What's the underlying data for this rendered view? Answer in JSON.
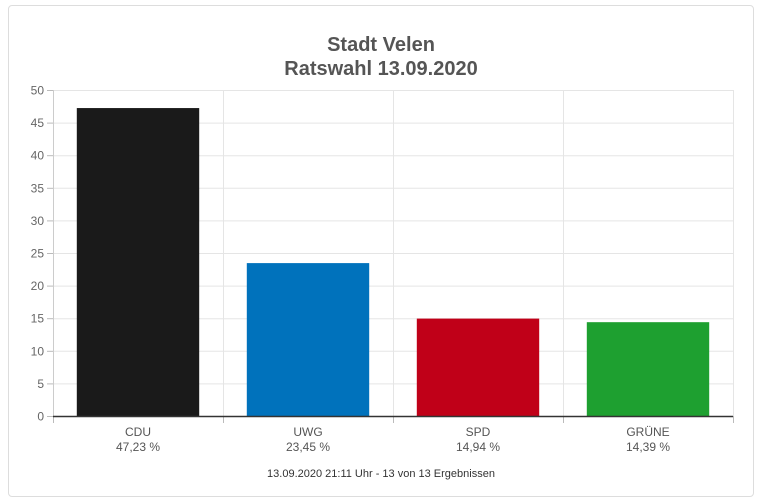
{
  "chart_data": {
    "type": "bar",
    "title": "Stadt Velen",
    "subtitle": "Ratswahl 13.09.2020",
    "categories": [
      "CDU",
      "UWG",
      "SPD",
      "GRÜNE"
    ],
    "values": [
      47.23,
      23.45,
      14.94,
      14.39
    ],
    "value_labels": [
      "47,23 %",
      "23,45 %",
      "14,94 %",
      "14,39 %"
    ],
    "colors": [
      "#1a1a1a",
      "#0072bc",
      "#c00018",
      "#1ea030"
    ],
    "ylim": [
      0,
      50
    ],
    "yticks": [
      0,
      5,
      10,
      15,
      20,
      25,
      30,
      35,
      40,
      45,
      50
    ],
    "grid": true,
    "xlabel": "",
    "ylabel": ""
  },
  "footer": "13.09.2020 21:11 Uhr - 13 von 13 Ergebnissen"
}
